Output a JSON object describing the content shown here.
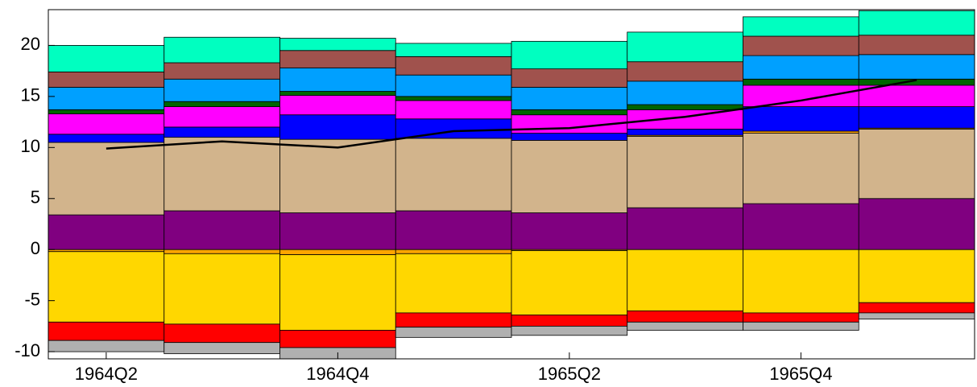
{
  "chart_data": {
    "type": "bar",
    "stacked": true,
    "categories": [
      "1964Q2",
      null,
      "1964Q4",
      null,
      "1965Q2",
      null,
      "1965Q4",
      null
    ],
    "series": [
      {
        "color": "#800080",
        "values": [
          3.4,
          3.8,
          3.6,
          3.8,
          3.6,
          4.1,
          4.5,
          5.0
        ]
      },
      {
        "color": "#d2b48c",
        "values": [
          7.1,
          7.2,
          7.2,
          7.1,
          7.1,
          7.0,
          6.9,
          6.8
        ]
      },
      {
        "color": "#ffa500",
        "values": [
          -0.2,
          -0.4,
          -0.5,
          -0.4,
          -0.1,
          0.1,
          0.2,
          0.1
        ]
      },
      {
        "color": "#ffd700",
        "values": [
          -6.9,
          -6.9,
          -7.4,
          -5.8,
          -6.3,
          -6.0,
          -6.2,
          -5.2
        ]
      },
      {
        "color": "#ff0000",
        "values": [
          -1.8,
          -1.8,
          -1.7,
          -1.4,
          -1.1,
          -1.1,
          -0.9,
          -1.0
        ]
      },
      {
        "color": "#b0b0b0",
        "values": [
          -1.1,
          -1.1,
          -1.1,
          -1.0,
          -0.9,
          -0.8,
          -0.8,
          -0.6
        ]
      },
      {
        "color": "#0000ff",
        "values": [
          0.8,
          1.0,
          2.4,
          1.9,
          0.7,
          0.6,
          2.4,
          2.1
        ]
      },
      {
        "color": "#ff00ff",
        "values": [
          2.0,
          2.0,
          1.9,
          1.8,
          1.8,
          1.9,
          2.1,
          2.1
        ]
      },
      {
        "color": "#006400",
        "values": [
          0.4,
          0.5,
          0.4,
          0.4,
          0.5,
          0.5,
          0.6,
          0.6
        ]
      },
      {
        "color": "#00a0ff",
        "values": [
          2.2,
          2.2,
          2.3,
          2.1,
          2.2,
          2.3,
          2.3,
          2.4
        ]
      },
      {
        "color": "#a0524d",
        "values": [
          1.5,
          1.6,
          1.7,
          1.8,
          1.8,
          1.9,
          1.9,
          1.9
        ]
      },
      {
        "color": "#00ffc0",
        "values": [
          2.6,
          2.5,
          1.2,
          1.3,
          2.7,
          2.9,
          1.9,
          2.4
        ]
      }
    ],
    "line": {
      "color": "#000000",
      "values": [
        9.9,
        10.6,
        10.0,
        11.6,
        11.9,
        13.0,
        14.6,
        16.6
      ]
    },
    "ylim": [
      -10.7,
      23.5
    ],
    "yticks": [
      -10,
      -5,
      0,
      5,
      10,
      15,
      20
    ]
  }
}
